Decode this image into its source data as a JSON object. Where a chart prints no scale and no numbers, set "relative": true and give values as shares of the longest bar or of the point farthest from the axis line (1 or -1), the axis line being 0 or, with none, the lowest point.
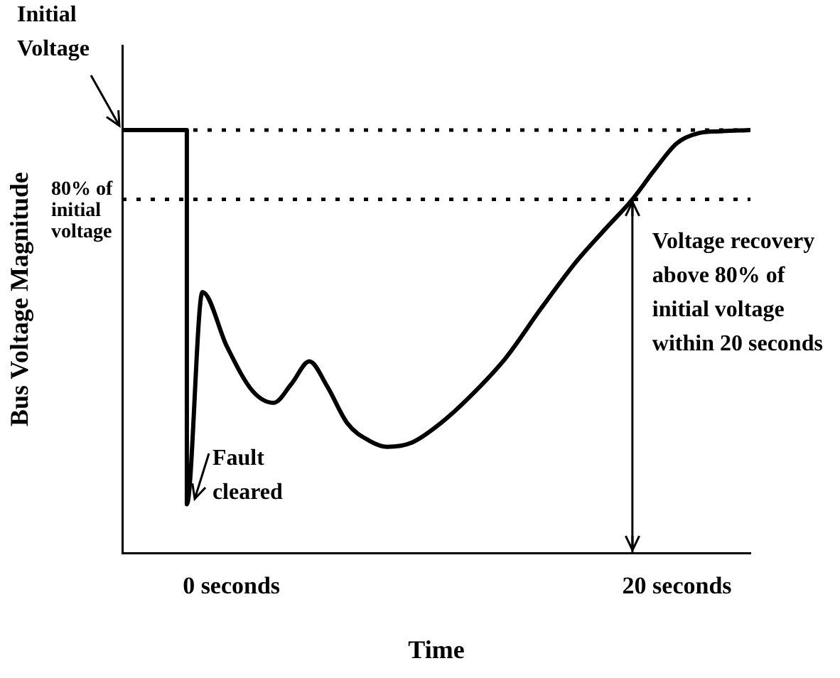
{
  "chart_data": {
    "type": "line",
    "relative": true,
    "xlabel": "Time",
    "ylabel": "Bus Voltage Magnitude",
    "xlim": [
      -4.9,
      23.3
    ],
    "xticks": [
      {
        "value": 0,
        "label": "0 seconds"
      },
      {
        "value": 20,
        "label": "20 seconds"
      }
    ],
    "tick_labels": "x",
    "grid": false,
    "legend": false,
    "marker": "none",
    "line_style": "solid",
    "series": [
      {
        "color": "#000000",
        "x": [
          -4.9,
          -2,
          -2,
          -1.3,
          -0.2,
          0.95,
          1.9,
          2.7,
          3.5,
          4.3,
          5.2,
          6.2,
          7.0,
          8.1,
          9.4,
          10.7,
          12.3,
          13.9,
          15.5,
          16.8,
          18,
          19.0,
          20.0,
          21.0,
          21.9,
          23.3
        ],
        "values": [
          1,
          1,
          0.115,
          0.617,
          0.488,
          0.383,
          0.355,
          0.4,
          0.453,
          0.394,
          0.307,
          0.265,
          0.251,
          0.261,
          0.307,
          0.369,
          0.46,
          0.578,
          0.69,
          0.767,
          0.836,
          0.906,
          0.969,
          0.993,
          0.997,
          1
        ]
      },
      {
        "type": "line",
        "color": "#000000",
        "x": [
          18,
          18
        ],
        "values": [
          0,
          0.836
        ]
      }
    ],
    "ref_lines": [
      {
        "axis": "y",
        "value": 1,
        "label": null,
        "color": "#000000",
        "line_style": "dotted"
      },
      {
        "axis": "y",
        "value": 0.836,
        "label": "80% of initial voltage",
        "color": "#000000",
        "line_style": "dotted"
      }
    ],
    "annotations": [
      {
        "text": "Initial Voltage",
        "x": -4.9,
        "y": 1
      },
      {
        "text": "Fault cleared",
        "x": -2,
        "y": 0.115
      },
      {
        "text": "Voltage recovery above 80% of initial voltage within 20 seconds",
        "x": 18,
        "y": 0.836
      }
    ]
  }
}
